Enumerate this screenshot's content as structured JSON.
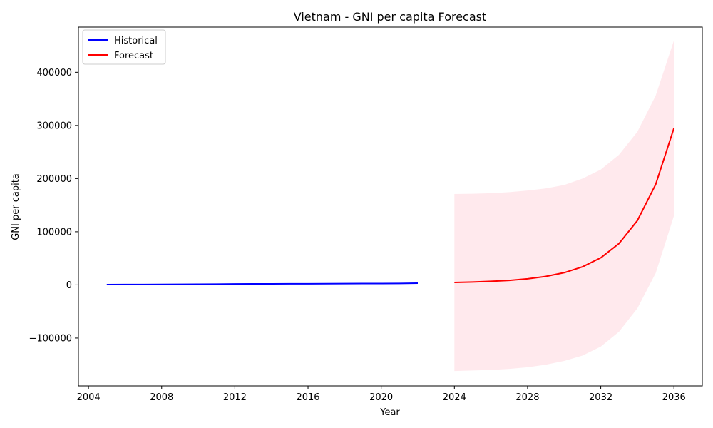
{
  "chart_data": {
    "type": "line",
    "title": "Vietnam - GNI per capita Forecast",
    "xlabel": "Year",
    "ylabel": "GNI per capita",
    "xlim": [
      2003.45,
      2037.55
    ],
    "ylim": [
      -190000,
      485000
    ],
    "x_ticks": [
      2004,
      2008,
      2012,
      2016,
      2020,
      2024,
      2028,
      2032,
      2036
    ],
    "y_ticks": [
      -100000,
      0,
      100000,
      200000,
      300000,
      400000
    ],
    "y_tick_labels": [
      "−100000",
      "0",
      "100000",
      "200000",
      "300000",
      "400000"
    ],
    "legend_position": "upper-left",
    "grid": false,
    "series": [
      {
        "name": "Historical",
        "color": "#0000ff",
        "x": [
          2005,
          2006,
          2007,
          2008,
          2009,
          2010,
          2011,
          2012,
          2013,
          2014,
          2015,
          2016,
          2017,
          2018,
          2019,
          2020,
          2021,
          2022
        ],
        "y": [
          620,
          700,
          800,
          920,
          1010,
          1250,
          1400,
          1680,
          1830,
          1980,
          2010,
          2100,
          2170,
          2400,
          2600,
          2650,
          2730,
          3300
        ]
      },
      {
        "name": "Forecast",
        "color": "#ff0000",
        "x": [
          2024,
          2025,
          2026,
          2027,
          2028,
          2029,
          2030,
          2031,
          2032,
          2033,
          2034,
          2035,
          2036
        ],
        "y": [
          4500,
          5500,
          6800,
          8500,
          11500,
          16000,
          23000,
          34000,
          51000,
          78000,
          121000,
          189000,
          295000
        ]
      }
    ],
    "confidence_band": {
      "color": "#ffc0cb",
      "opacity": 0.35,
      "x": [
        2024,
        2025,
        2026,
        2027,
        2028,
        2029,
        2030,
        2031,
        2032,
        2033,
        2034,
        2035,
        2036
      ],
      "lower": [
        -162000,
        -161000,
        -160000,
        -158000,
        -155000,
        -150000,
        -143000,
        -133000,
        -116000,
        -88000,
        -44000,
        22000,
        130000
      ],
      "upper": [
        171000,
        171500,
        172500,
        174500,
        177500,
        181500,
        188000,
        200000,
        217000,
        245000,
        288000,
        356000,
        460000
      ]
    }
  }
}
